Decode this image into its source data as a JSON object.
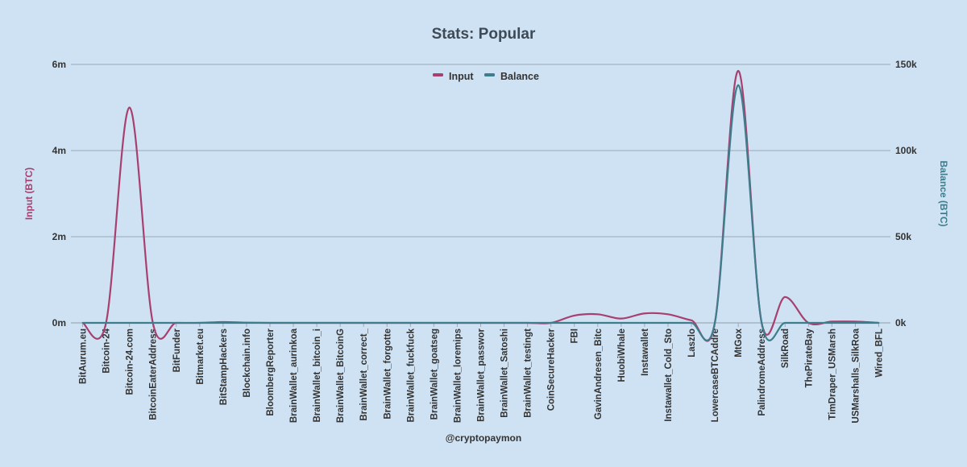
{
  "chart_data": {
    "type": "line",
    "title": "Stats: Popular",
    "credit": "@cryptopaymon",
    "categories": [
      "BitAurum.eu",
      "Bitcoin-24",
      "Bitcoin-24.com",
      "BitcoinEaterAddress",
      "BitFunder",
      "Bitmarket.eu",
      "BitStampHackers",
      "Blockchain.info",
      "BloombergReporter",
      "BrainWallet_aurinkoa",
      "BrainWallet_bitcoin_i",
      "BrainWallet_BitcoinG",
      "BrainWallet_correct_",
      "BrainWallet_forgotte",
      "BrainWallet_fuckfuck",
      "BrainWallet_goatseg",
      "BrainWallet_loremips",
      "BrainWallet_passwor",
      "BrainWallet_Satoshi",
      "BrainWallet_testingt",
      "CoinSecureHacker",
      "FBI",
      "GavinAndresen_Bitc",
      "HuobiWhale",
      "Instawallet",
      "Instawallet_Cold_Sto",
      "Laszlo",
      "LowercaseBTCAddre",
      "MtGox",
      "PalindromeAddress",
      "SilkRoad",
      "ThePirateBay",
      "TimDraper_USMarsh",
      "USMarshalls_SilkRoa",
      "Wired_BFL"
    ],
    "series": [
      {
        "name": "Input",
        "axis": "left",
        "color": "#a8406f",
        "values": [
          0,
          0,
          5000000,
          0,
          0,
          0,
          20000,
          5000,
          0,
          0,
          0,
          0,
          0,
          0,
          0,
          0,
          0,
          0,
          0,
          0,
          0,
          170000,
          200000,
          100000,
          220000,
          200000,
          60000,
          0,
          5850000,
          0,
          600000,
          0,
          30000,
          30000,
          0
        ]
      },
      {
        "name": "Balance",
        "axis": "right",
        "color": "#3d7d8c",
        "values": [
          0,
          0,
          0,
          0,
          0,
          0,
          0,
          0,
          0,
          0,
          0,
          0,
          0,
          0,
          0,
          0,
          0,
          0,
          0,
          0,
          0,
          0,
          0,
          0,
          0,
          0,
          0,
          0,
          138000,
          0,
          0,
          0,
          0,
          0,
          0
        ]
      }
    ],
    "y_left": {
      "label": "Input (BTC)",
      "min": 0,
      "max": 6000000,
      "ticks": [
        0,
        2000000,
        4000000,
        6000000
      ],
      "tick_labels": [
        "0m",
        "2m",
        "4m",
        "6m"
      ]
    },
    "y_right": {
      "label": "Balance (BTC)",
      "min": 0,
      "max": 150000,
      "ticks": [
        0,
        50000,
        100000,
        150000
      ],
      "tick_labels": [
        "0k",
        "50k",
        "100k",
        "150k"
      ]
    },
    "grid": true,
    "legend_position": "top-center",
    "colors": {
      "background": "#cfe2f3",
      "grid": "#9aaab8",
      "left_axis_title": "#a8406f",
      "right_axis_title": "#3d7d8c"
    }
  }
}
